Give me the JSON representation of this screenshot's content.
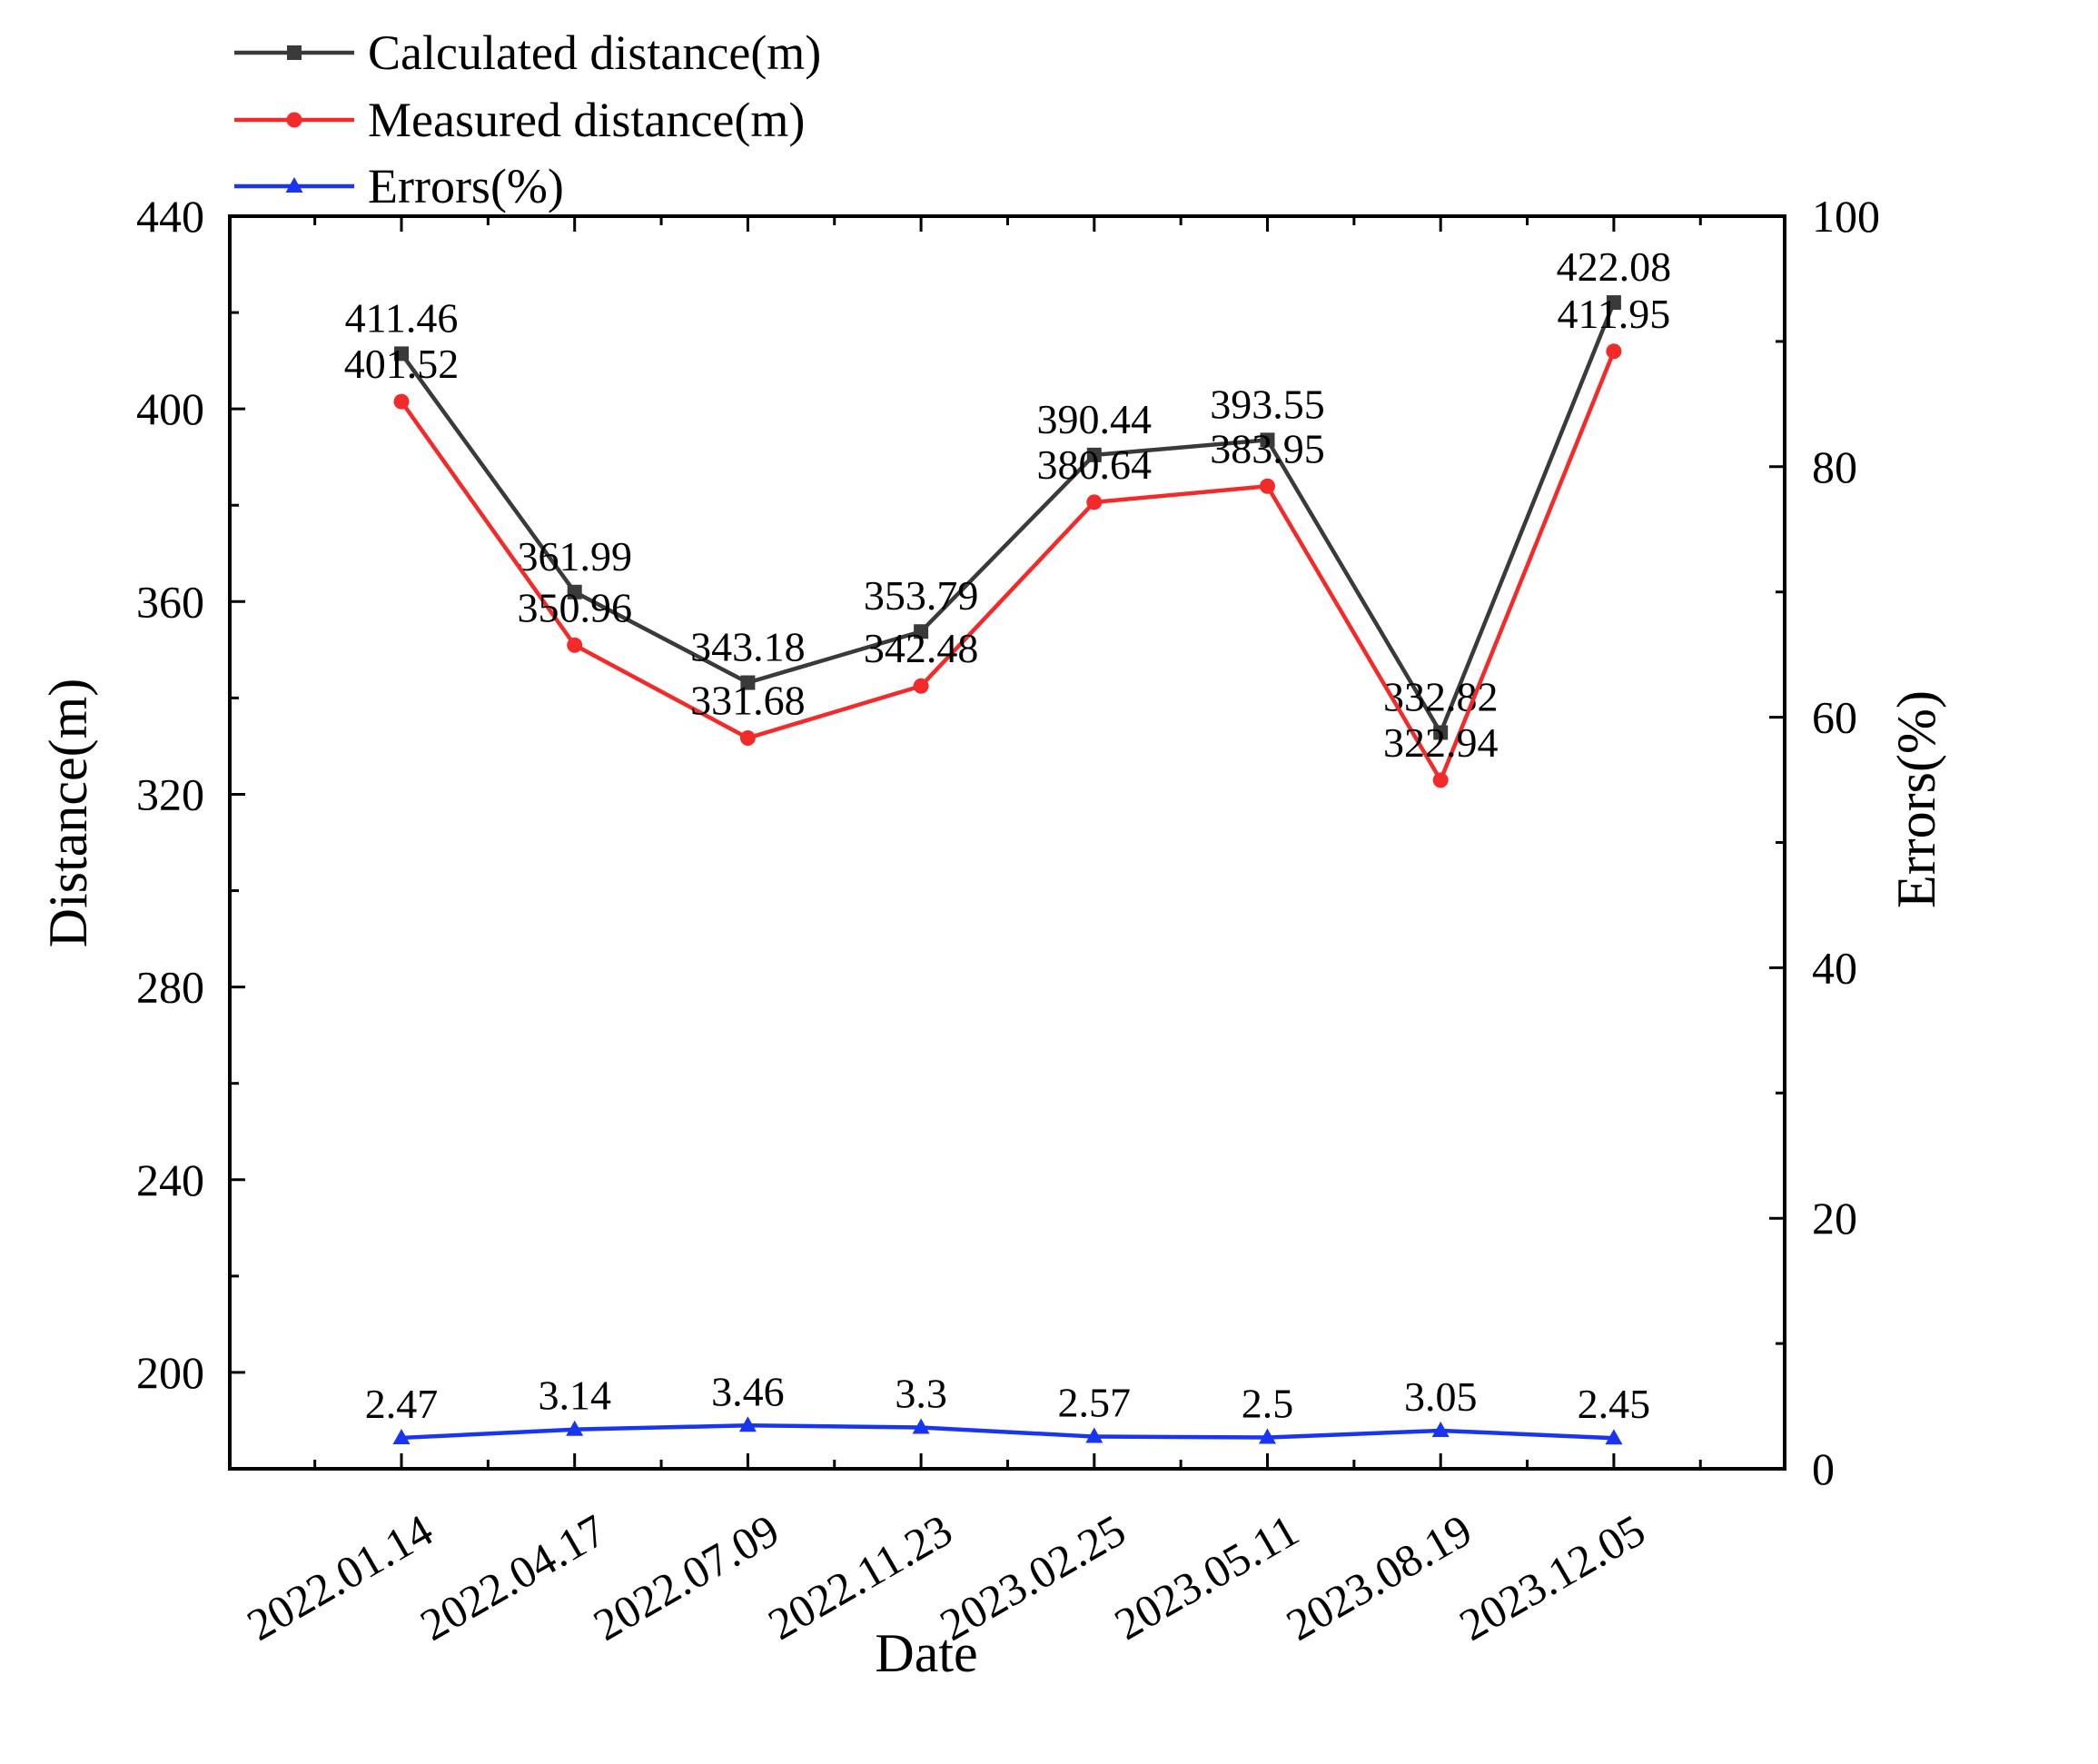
{
  "chart_data": {
    "type": "line",
    "xlabel": "Date",
    "ylabel": "Distance(m)",
    "y2label": "Errors(%)",
    "categories": [
      "2022.01.14",
      "2022.04.17",
      "2022.07.09",
      "2022.11.23",
      "2023.02.25",
      "2023.05.11",
      "2023.08.19",
      "2023.12.05"
    ],
    "ylim": [
      180,
      440
    ],
    "y_ticks": [
      "200",
      "240",
      "280",
      "320",
      "360",
      "400",
      "440"
    ],
    "y2lim": [
      0,
      100
    ],
    "y2_ticks": [
      "0",
      "20",
      "40",
      "60",
      "80",
      "100"
    ],
    "legend_position": "top-left, above plot",
    "series": [
      {
        "name": "Calculated distance(m)",
        "axis": "left",
        "color": "#3a3a3a",
        "marker": "square",
        "values": [
          411.46,
          361.99,
          343.18,
          353.79,
          390.44,
          393.55,
          332.82,
          422.08
        ],
        "labels": [
          "411.46",
          "361.99",
          "343.18",
          "353.79",
          "390.44",
          "393.55",
          "332.82",
          "422.08"
        ]
      },
      {
        "name": "Measured distance(m)",
        "axis": "left",
        "color": "#f22a2a",
        "marker": "circle",
        "values": [
          401.52,
          350.96,
          331.68,
          342.48,
          380.64,
          383.95,
          322.94,
          411.95
        ],
        "labels": [
          "401.52",
          "350.96",
          "331.68",
          "342.48",
          "380.64",
          "383.95",
          "322.94",
          "411.95"
        ]
      },
      {
        "name": "Errors(%)",
        "axis": "right",
        "color": "#1a35f0",
        "marker": "triangle",
        "values": [
          2.47,
          3.14,
          3.46,
          3.3,
          2.57,
          2.5,
          3.05,
          2.45
        ],
        "labels": [
          "2.47",
          "3.14",
          "3.46",
          "3.3",
          "2.57",
          "2.5",
          "3.05",
          "2.45"
        ]
      }
    ]
  }
}
